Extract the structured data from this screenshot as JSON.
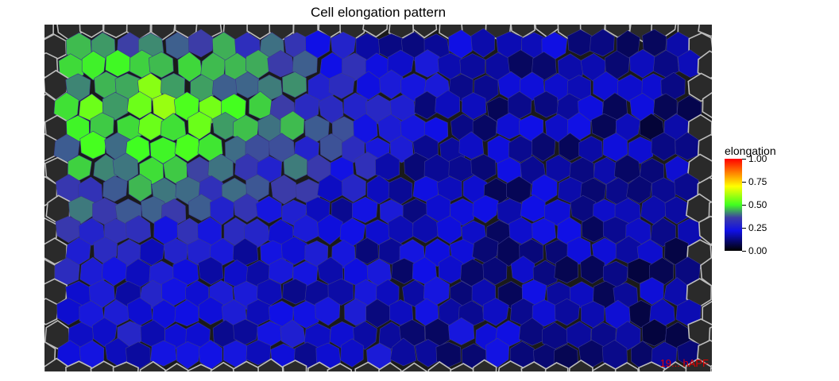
{
  "chart_data": {
    "type": "heatmap",
    "title": "Cell elongation pattern",
    "colorbar": {
      "title": "elongation",
      "range": [
        0,
        1
      ],
      "ticks": [
        "0.00",
        "0.25",
        "0.50",
        "0.75",
        "1.00"
      ],
      "tick_values": [
        0,
        0.25,
        0.5,
        0.75,
        1.0
      ],
      "colors": [
        "#000000",
        "#1010e6",
        "#3d3da6",
        "#40ff20",
        "#ffff00",
        "#ff8000",
        "#ff0000"
      ]
    },
    "annotation": "19... hAPF",
    "pattern": {
      "high_elongation_region": "upper-left",
      "low_elongation_region": "center-right and lower-right"
    }
  }
}
